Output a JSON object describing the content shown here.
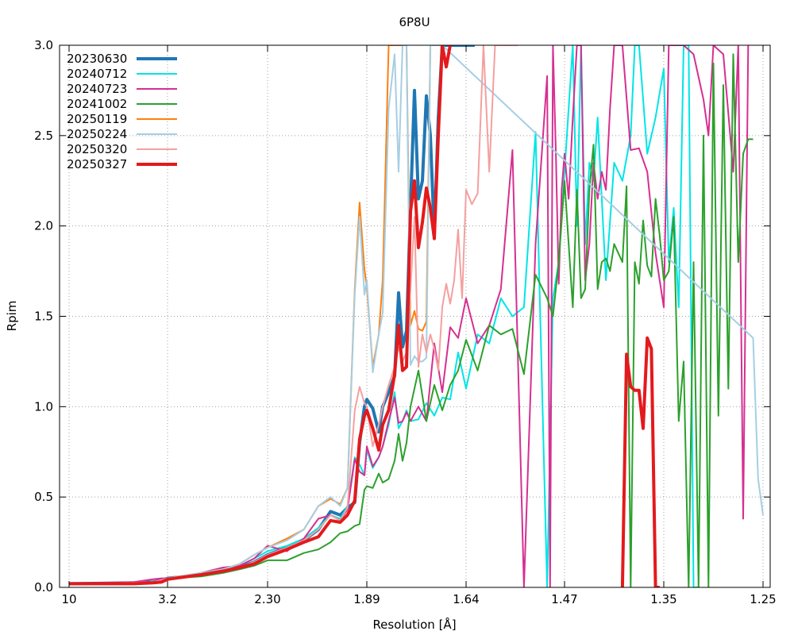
{
  "chart_data": {
    "type": "line",
    "title": "6P8U",
    "xlabel": "Resolution [Å]",
    "ylabel": "Rpim",
    "xlim": [
      10,
      1.25
    ],
    "ylim": [
      0,
      3.0
    ],
    "grid": true,
    "legend_position": "top-left",
    "x_ticks": [
      "10",
      "3.2",
      "2.30",
      "1.89",
      "1.64",
      "1.47",
      "1.35",
      "1.25"
    ],
    "x_tick_values": [
      10,
      3.2,
      2.3,
      1.89,
      1.64,
      1.47,
      1.35,
      1.25
    ],
    "y_ticks": [
      "0.0",
      "0.5",
      "1.0",
      "1.5",
      "2.0",
      "2.5",
      "3.0"
    ],
    "y_tick_values": [
      0,
      0.5,
      1.0,
      1.5,
      2.0,
      2.5,
      3.0
    ],
    "series": [
      {
        "name": "20230630",
        "color": "#1f77b4",
        "width": 4,
        "x": [
          10,
          5.5,
          4.2,
          3.6,
          3.2,
          2.9,
          2.7,
          2.55,
          2.42,
          2.3,
          2.22,
          2.15,
          2.09,
          2.04,
          2.0,
          1.97,
          1.94,
          1.92,
          1.9,
          1.89,
          1.875,
          1.86,
          1.85,
          1.835,
          1.82,
          1.81,
          1.8,
          1.79,
          1.78,
          1.77,
          1.76,
          1.75,
          1.74,
          1.73,
          1.72,
          1.71,
          1.7,
          1.69,
          1.68,
          1.67,
          1.66,
          1.65,
          1.64,
          1.635,
          1.63,
          1.625
        ],
        "y": [
          0.02,
          0.025,
          0.03,
          0.04,
          0.05,
          0.07,
          0.09,
          0.11,
          0.14,
          0.18,
          0.22,
          0.26,
          0.32,
          0.42,
          0.4,
          0.44,
          0.47,
          0.8,
          1.0,
          1.04,
          0.99,
          0.86,
          1.0,
          1.08,
          1.17,
          1.63,
          1.33,
          1.42,
          2.1,
          2.75,
          2.15,
          2.25,
          2.72,
          2.5,
          1.95,
          2.6,
          3.0,
          3.0,
          3.0,
          3.0,
          3.0,
          3.0,
          3.0,
          3.0,
          3.0,
          3.0
        ]
      },
      {
        "name": "20240712",
        "color": "#00e5e5",
        "width": 2,
        "x": [
          10,
          5.5,
          4.2,
          3.6,
          3.2,
          2.9,
          2.7,
          2.55,
          2.42,
          2.3,
          2.22,
          2.15,
          2.09,
          2.04,
          2.0,
          1.97,
          1.94,
          1.92,
          1.9,
          1.89,
          1.875,
          1.86,
          1.85,
          1.835,
          1.82,
          1.81,
          1.8,
          1.79,
          1.78,
          1.76,
          1.74,
          1.72,
          1.7,
          1.68,
          1.66,
          1.64,
          1.62,
          1.6,
          1.58,
          1.56,
          1.54,
          1.52,
          1.5,
          1.49,
          1.48,
          1.47,
          1.46,
          1.455,
          1.45,
          1.445,
          1.44,
          1.435,
          1.43,
          1.42,
          1.41,
          1.4,
          1.39,
          1.385,
          1.38,
          1.37,
          1.36,
          1.35,
          1.345,
          1.34,
          1.335,
          1.33,
          1.325,
          1.32,
          1.315
        ],
        "y": [
          0.02,
          0.025,
          0.03,
          0.04,
          0.05,
          0.07,
          0.1,
          0.12,
          0.16,
          0.2,
          0.23,
          0.27,
          0.33,
          0.4,
          0.38,
          0.45,
          0.72,
          0.68,
          0.62,
          0.76,
          0.66,
          0.72,
          0.78,
          0.9,
          1.08,
          0.88,
          0.92,
          0.98,
          0.92,
          0.93,
          1.02,
          0.95,
          1.05,
          1.04,
          1.3,
          1.1,
          1.4,
          1.35,
          1.6,
          1.5,
          1.55,
          2.52,
          0.0,
          1.6,
          1.8,
          2.3,
          3.0,
          2.0,
          3.0,
          1.9,
          2.35,
          2.25,
          2.6,
          1.7,
          2.35,
          2.25,
          2.5,
          3.0,
          3.0,
          2.4,
          2.6,
          2.87,
          1.8,
          2.1,
          1.55,
          3.0,
          3.0,
          0.0,
          0.0
        ]
      },
      {
        "name": "20240723",
        "color": "#d62f91",
        "width": 2,
        "x": [
          10,
          5.5,
          4.2,
          3.6,
          3.2,
          2.9,
          2.7,
          2.55,
          2.42,
          2.3,
          2.22,
          2.15,
          2.09,
          2.04,
          2.0,
          1.97,
          1.94,
          1.92,
          1.9,
          1.89,
          1.875,
          1.86,
          1.85,
          1.835,
          1.82,
          1.81,
          1.8,
          1.79,
          1.78,
          1.76,
          1.74,
          1.72,
          1.7,
          1.68,
          1.66,
          1.64,
          1.62,
          1.6,
          1.58,
          1.56,
          1.54,
          1.52,
          1.5,
          1.495,
          1.49,
          1.485,
          1.48,
          1.475,
          1.47,
          1.465,
          1.46,
          1.455,
          1.45,
          1.445,
          1.44,
          1.435,
          1.43,
          1.425,
          1.42,
          1.415,
          1.41,
          1.4,
          1.39,
          1.38,
          1.37,
          1.36,
          1.35,
          1.345,
          1.34,
          1.33,
          1.32,
          1.31,
          1.305,
          1.3,
          1.29,
          1.28,
          1.275,
          1.27,
          1.265
        ],
        "y": [
          0.02,
          0.03,
          0.045,
          0.05,
          0.05,
          0.08,
          0.11,
          0.12,
          0.16,
          0.23,
          0.2,
          0.27,
          0.38,
          0.4,
          0.37,
          0.43,
          0.71,
          0.64,
          0.62,
          0.78,
          0.67,
          0.72,
          0.78,
          0.92,
          1.05,
          0.91,
          0.92,
          0.97,
          0.92,
          1.0,
          0.92,
          1.35,
          1.08,
          1.44,
          1.38,
          1.6,
          1.35,
          1.45,
          1.65,
          2.42,
          0.0,
          1.9,
          2.83,
          0.0,
          3.0,
          2.4,
          1.68,
          2.2,
          2.4,
          2.15,
          2.6,
          3.0,
          3.0,
          1.7,
          1.9,
          2.35,
          2.15,
          2.3,
          2.2,
          2.65,
          3.0,
          3.0,
          2.42,
          2.43,
          2.3,
          1.85,
          1.55,
          3.0,
          3.0,
          3.0,
          2.95,
          2.7,
          2.5,
          3.0,
          2.95,
          2.3,
          3.0,
          0.38,
          3.0
        ]
      },
      {
        "name": "20241002",
        "color": "#2ca02c",
        "width": 2,
        "x": [
          10,
          5.5,
          4.2,
          3.6,
          3.2,
          2.9,
          2.7,
          2.55,
          2.42,
          2.3,
          2.22,
          2.15,
          2.09,
          2.04,
          2.0,
          1.97,
          1.94,
          1.92,
          1.9,
          1.89,
          1.875,
          1.86,
          1.85,
          1.835,
          1.82,
          1.81,
          1.8,
          1.79,
          1.78,
          1.76,
          1.74,
          1.72,
          1.7,
          1.68,
          1.66,
          1.64,
          1.62,
          1.6,
          1.58,
          1.56,
          1.54,
          1.52,
          1.5,
          1.49,
          1.48,
          1.47,
          1.46,
          1.455,
          1.45,
          1.445,
          1.44,
          1.435,
          1.43,
          1.425,
          1.42,
          1.415,
          1.41,
          1.4,
          1.395,
          1.39,
          1.385,
          1.38,
          1.375,
          1.37,
          1.365,
          1.36,
          1.355,
          1.35,
          1.345,
          1.34,
          1.335,
          1.33,
          1.325,
          1.32,
          1.315,
          1.31,
          1.305,
          1.3,
          1.295,
          1.29,
          1.285,
          1.28,
          1.275,
          1.27,
          1.265,
          1.26
        ],
        "y": [
          0.02,
          0.025,
          0.03,
          0.04,
          0.05,
          0.06,
          0.08,
          0.1,
          0.12,
          0.15,
          0.15,
          0.19,
          0.21,
          0.25,
          0.3,
          0.31,
          0.34,
          0.35,
          0.54,
          0.56,
          0.55,
          0.63,
          0.58,
          0.6,
          0.7,
          0.85,
          0.7,
          0.8,
          1.0,
          1.2,
          0.92,
          1.12,
          0.98,
          1.12,
          1.2,
          1.37,
          1.2,
          1.45,
          1.4,
          1.43,
          1.18,
          1.73,
          1.6,
          1.5,
          1.8,
          2.25,
          1.55,
          2.2,
          1.6,
          1.65,
          2.2,
          2.45,
          1.65,
          1.8,
          1.82,
          1.75,
          1.9,
          1.8,
          2.22,
          0.0,
          1.8,
          1.68,
          2.03,
          1.78,
          1.72,
          2.15,
          1.95,
          1.7,
          1.75,
          2.05,
          0.92,
          1.25,
          0.0,
          1.8,
          0.0,
          2.5,
          0.0,
          2.9,
          0.95,
          2.78,
          1.1,
          2.95,
          1.8,
          2.4,
          2.48,
          2.48
        ]
      },
      {
        "name": "20250119",
        "color": "#ff7f0e",
        "width": 2,
        "x": [
          10,
          5.5,
          4.2,
          3.6,
          3.2,
          2.9,
          2.7,
          2.55,
          2.42,
          2.3,
          2.22,
          2.15,
          2.09,
          2.04,
          2.0,
          1.97,
          1.94,
          1.92,
          1.9,
          1.89,
          1.875,
          1.86,
          1.85,
          1.835,
          1.82,
          1.81,
          1.8,
          1.79,
          1.78,
          1.77,
          1.76,
          1.75,
          1.74,
          1.73,
          1.72,
          1.71,
          1.7
        ],
        "y": [
          0.02,
          0.025,
          0.03,
          0.04,
          0.05,
          0.08,
          0.1,
          0.13,
          0.18,
          0.22,
          0.27,
          0.32,
          0.45,
          0.49,
          0.46,
          0.55,
          1.65,
          2.13,
          1.76,
          1.66,
          1.22,
          1.4,
          1.7,
          3.0,
          3.0,
          3.0,
          3.0,
          3.0,
          1.45,
          1.53,
          1.43,
          1.42,
          1.47,
          3.0,
          3.0,
          3.0,
          3.0
        ]
      },
      {
        "name": "20250224",
        "color": "#a6cee3",
        "width": 2,
        "x": [
          10,
          5.5,
          4.2,
          3.6,
          3.2,
          2.9,
          2.7,
          2.55,
          2.42,
          2.3,
          2.22,
          2.15,
          2.09,
          2.04,
          2.0,
          1.97,
          1.94,
          1.92,
          1.9,
          1.89,
          1.875,
          1.86,
          1.85,
          1.835,
          1.82,
          1.81,
          1.8,
          1.79,
          1.78,
          1.77,
          1.76,
          1.75,
          1.74,
          1.73,
          1.72,
          1.71,
          1.7,
          1.26,
          1.255,
          1.25
        ],
        "y": [
          0.02,
          0.025,
          0.03,
          0.04,
          0.05,
          0.08,
          0.1,
          0.13,
          0.18,
          0.22,
          0.26,
          0.32,
          0.45,
          0.5,
          0.45,
          0.55,
          1.62,
          2.05,
          1.62,
          1.7,
          1.19,
          1.4,
          1.52,
          2.65,
          2.95,
          2.3,
          3.0,
          3.0,
          1.23,
          1.28,
          1.25,
          1.25,
          1.27,
          3.0,
          3.0,
          3.0,
          3.0,
          1.38,
          0.6,
          0.4
        ]
      },
      {
        "name": "20250320",
        "color": "#f4a0a0",
        "width": 2,
        "x": [
          10,
          5.5,
          4.2,
          3.6,
          3.2,
          2.9,
          2.7,
          2.55,
          2.42,
          2.3,
          2.22,
          2.15,
          2.09,
          2.04,
          2.0,
          1.97,
          1.94,
          1.92,
          1.9,
          1.89,
          1.875,
          1.86,
          1.85,
          1.835,
          1.82,
          1.81,
          1.8,
          1.79,
          1.78,
          1.77,
          1.76,
          1.75,
          1.74,
          1.73,
          1.72,
          1.71,
          1.7,
          1.69,
          1.68,
          1.67,
          1.66,
          1.65,
          1.64,
          1.63,
          1.62,
          1.61,
          1.6,
          1.59,
          1.58,
          1.57,
          1.56,
          1.55
        ],
        "y": [
          0.02,
          0.025,
          0.03,
          0.04,
          0.05,
          0.07,
          0.09,
          0.11,
          0.14,
          0.18,
          0.22,
          0.26,
          0.32,
          0.4,
          0.37,
          0.44,
          0.98,
          1.11,
          1.02,
          1.0,
          0.78,
          0.9,
          1.0,
          1.12,
          1.22,
          1.33,
          1.25,
          1.3,
          1.65,
          2.05,
          1.22,
          1.4,
          1.3,
          1.4,
          1.32,
          1.2,
          1.55,
          1.68,
          1.57,
          1.7,
          1.98,
          1.6,
          2.2,
          2.12,
          2.18,
          3.0,
          2.3,
          3.0,
          3.0,
          3.0,
          3.0,
          3.0
        ]
      },
      {
        "name": "20250327",
        "color": "#e31a1c",
        "width": 4,
        "x": [
          10,
          5.5,
          4.2,
          3.6,
          3.2,
          2.9,
          2.7,
          2.55,
          2.42,
          2.3,
          2.22,
          2.15,
          2.09,
          2.04,
          2.0,
          1.97,
          1.94,
          1.92,
          1.9,
          1.89,
          1.875,
          1.86,
          1.85,
          1.835,
          1.82,
          1.81,
          1.8,
          1.79,
          1.78,
          1.77,
          1.76,
          1.75,
          1.74,
          1.73,
          1.72,
          1.71,
          1.7,
          1.69,
          1.68
        ],
        "y": [
          0.02,
          0.02,
          0.025,
          0.03,
          0.045,
          0.07,
          0.09,
          0.11,
          0.13,
          0.17,
          0.21,
          0.25,
          0.28,
          0.37,
          0.36,
          0.4,
          0.48,
          0.82,
          0.95,
          0.98,
          0.88,
          0.76,
          0.9,
          0.98,
          1.18,
          1.45,
          1.2,
          1.22,
          2.08,
          2.25,
          1.88,
          2.02,
          2.21,
          2.1,
          1.93,
          2.5,
          3.0,
          2.88,
          3.0
        ]
      },
      {
        "name": "20250327",
        "color": "#e31a1c",
        "width": 4,
        "legend": false,
        "x": [
          1.4,
          1.395,
          1.39,
          1.385,
          1.38,
          1.375,
          1.37,
          1.365,
          1.36,
          1.355
        ],
        "y": [
          0.0,
          1.29,
          1.11,
          1.09,
          1.09,
          0.88,
          1.38,
          1.32,
          0.0,
          0.0
        ]
      }
    ]
  }
}
